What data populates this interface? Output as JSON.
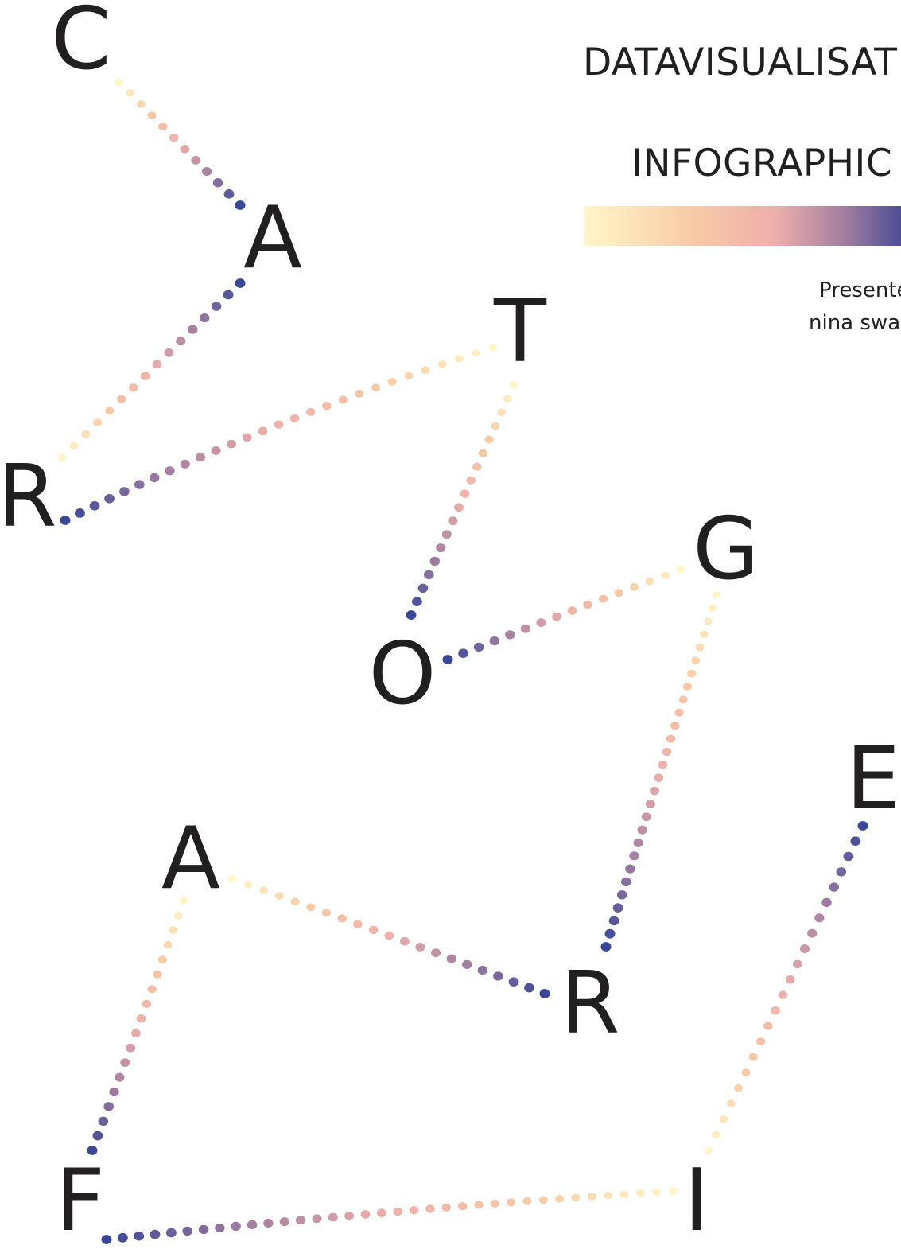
{
  "word_letters": [
    "C",
    "A",
    "R",
    "T",
    "O",
    "G",
    "R",
    "A",
    "F",
    "I",
    "E"
  ],
  "header": {
    "title_line_1": "DATAVISUALISAT",
    "title_line_2": "INFOGRAPHIC",
    "credit_line_1": "Presente",
    "credit_line_2": "nina swa"
  },
  "palette": {
    "dot_start": "#fff6c8",
    "dot_mid_1": "#f7caa6",
    "dot_mid_2": "#eeb0ab",
    "dot_mid_3": "#a27ea0",
    "dot_end": "#3a4795",
    "text": "#221f20"
  },
  "decoration": {
    "connector_style": "dotted gradient path",
    "gradient_bar": "cream-to-indigo"
  }
}
